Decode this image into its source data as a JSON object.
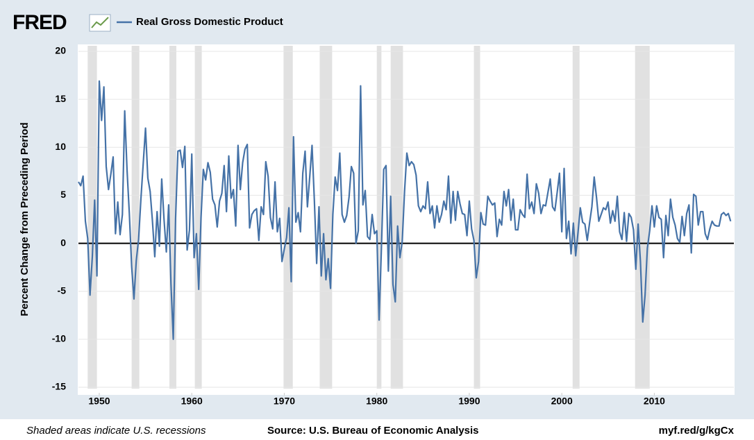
{
  "chart_data": {
    "type": "line",
    "logo": "FRED",
    "ylabel": "Percent Change from Preceding Period",
    "note": "Shaded areas indicate U.S. recessions",
    "source": "Source: U.S. Bureau of Economic Analysis",
    "link": "myf.red/g/kgCx",
    "xlim": [
      1947.75,
      2018.6
    ],
    "ylim": [
      -15,
      20
    ],
    "xticks": [
      1950,
      1960,
      1970,
      1980,
      1990,
      2000,
      2010
    ],
    "yticks": [
      -15,
      -10,
      -5,
      0,
      5,
      10,
      15,
      20
    ],
    "grid": true,
    "zero_line": true,
    "recession_color": "#e1e1e1",
    "recessions": [
      [
        1948.75,
        1949.75
      ],
      [
        1953.5,
        1954.33
      ],
      [
        1957.58,
        1958.33
      ],
      [
        1960.33,
        1961.08
      ],
      [
        1969.92,
        1970.92
      ],
      [
        1973.83,
        1975.17
      ],
      [
        1980.0,
        1980.5
      ],
      [
        1981.5,
        1982.83
      ],
      [
        1990.5,
        1991.17
      ],
      [
        2001.17,
        2001.92
      ],
      [
        2007.92,
        2009.5
      ]
    ],
    "x": [
      1947.75,
      1948,
      1948.25,
      1948.5,
      1948.75,
      1949,
      1949.25,
      1949.5,
      1949.75,
      1950,
      1950.25,
      1950.5,
      1950.75,
      1951,
      1951.25,
      1951.5,
      1951.75,
      1952,
      1952.25,
      1952.5,
      1952.75,
      1953,
      1953.25,
      1953.5,
      1953.75,
      1954,
      1954.25,
      1954.5,
      1954.75,
      1955,
      1955.25,
      1955.5,
      1955.75,
      1956,
      1956.25,
      1956.5,
      1956.75,
      1957,
      1957.25,
      1957.5,
      1957.75,
      1958,
      1958.25,
      1958.5,
      1958.75,
      1959,
      1959.25,
      1959.5,
      1959.75,
      1960,
      1960.25,
      1960.5,
      1960.75,
      1961,
      1961.25,
      1961.5,
      1961.75,
      1962,
      1962.25,
      1962.5,
      1962.75,
      1963,
      1963.25,
      1963.5,
      1963.75,
      1964,
      1964.25,
      1964.5,
      1964.75,
      1965,
      1965.25,
      1965.5,
      1965.75,
      1966,
      1966.25,
      1966.5,
      1966.75,
      1967,
      1967.25,
      1967.5,
      1967.75,
      1968,
      1968.25,
      1968.5,
      1968.75,
      1969,
      1969.25,
      1969.5,
      1969.75,
      1970,
      1970.25,
      1970.5,
      1970.75,
      1971,
      1971.25,
      1971.5,
      1971.75,
      1972,
      1972.25,
      1972.5,
      1972.75,
      1973,
      1973.25,
      1973.5,
      1973.75,
      1974,
      1974.25,
      1974.5,
      1974.75,
      1975,
      1975.25,
      1975.5,
      1975.75,
      1976,
      1976.25,
      1976.5,
      1976.75,
      1977,
      1977.25,
      1977.5,
      1977.75,
      1978,
      1978.25,
      1978.5,
      1978.75,
      1979,
      1979.25,
      1979.5,
      1979.75,
      1980,
      1980.25,
      1980.5,
      1980.75,
      1981,
      1981.25,
      1981.5,
      1981.75,
      1982,
      1982.25,
      1982.5,
      1982.75,
      1983,
      1983.25,
      1983.5,
      1983.75,
      1984,
      1984.25,
      1984.5,
      1984.75,
      1985,
      1985.25,
      1985.5,
      1985.75,
      1986,
      1986.25,
      1986.5,
      1986.75,
      1987,
      1987.25,
      1987.5,
      1987.75,
      1988,
      1988.25,
      1988.5,
      1988.75,
      1989,
      1989.25,
      1989.5,
      1989.75,
      1990,
      1990.25,
      1990.5,
      1990.75,
      1991,
      1991.25,
      1991.5,
      1991.75,
      1992,
      1992.25,
      1992.5,
      1992.75,
      1993,
      1993.25,
      1993.5,
      1993.75,
      1994,
      1994.25,
      1994.5,
      1994.75,
      1995,
      1995.25,
      1995.5,
      1995.75,
      1996,
      1996.25,
      1996.5,
      1996.75,
      1997,
      1997.25,
      1997.5,
      1997.75,
      1998,
      1998.25,
      1998.5,
      1998.75,
      1999,
      1999.25,
      1999.5,
      1999.75,
      2000,
      2000.25,
      2000.5,
      2000.75,
      2001,
      2001.25,
      2001.5,
      2001.75,
      2002,
      2002.25,
      2002.5,
      2002.75,
      2003,
      2003.25,
      2003.5,
      2003.75,
      2004,
      2004.25,
      2004.5,
      2004.75,
      2005,
      2005.25,
      2005.5,
      2005.75,
      2006,
      2006.25,
      2006.5,
      2006.75,
      2007,
      2007.25,
      2007.5,
      2007.75,
      2008,
      2008.25,
      2008.5,
      2008.75,
      2009,
      2009.25,
      2009.5,
      2009.75,
      2010,
      2010.25,
      2010.5,
      2010.75,
      2011,
      2011.25,
      2011.5,
      2011.75,
      2012,
      2012.25,
      2012.5,
      2012.75,
      2013,
      2013.25,
      2013.5,
      2013.75,
      2014,
      2014.25,
      2014.5,
      2014.75,
      2015,
      2015.25,
      2015.5,
      2015.75,
      2016,
      2016.25,
      2016.5,
      2016.75,
      2017,
      2017.25,
      2017.5,
      2017.75,
      2018,
      2018.25
    ],
    "series": [
      {
        "name": "Real Gross Domestic Product",
        "color": "#4572a7",
        "values": [
          6.4,
          6.0,
          7.0,
          2.3,
          0.5,
          -5.4,
          -1.4,
          4.5,
          -3.4,
          16.9,
          12.8,
          16.3,
          8.0,
          5.6,
          7.2,
          9.0,
          1.0,
          4.3,
          0.9,
          3.0,
          13.8,
          7.7,
          3.1,
          -2.4,
          -5.8,
          -1.8,
          0.4,
          4.6,
          8.3,
          12.0,
          6.8,
          5.4,
          2.3,
          -1.4,
          3.3,
          -0.3,
          6.7,
          2.5,
          -0.9,
          4.0,
          -4.2,
          -10.0,
          2.6,
          9.6,
          9.7,
          7.9,
          10.1,
          -0.7,
          1.4,
          9.3,
          -1.5,
          1.0,
          -4.8,
          2.7,
          7.7,
          6.6,
          8.4,
          7.4,
          4.6,
          4.0,
          1.7,
          4.4,
          5.2,
          8.1,
          3.3,
          9.1,
          4.7,
          5.6,
          1.8,
          10.2,
          5.6,
          8.4,
          9.8,
          10.3,
          1.6,
          3.0,
          3.4,
          3.6,
          0.3,
          3.8,
          3.0,
          8.5,
          7.0,
          2.7,
          1.5,
          6.4,
          1.2,
          2.6,
          -1.9,
          -0.6,
          0.6,
          3.7,
          -4.0,
          11.1,
          2.2,
          3.2,
          1.2,
          7.3,
          9.6,
          3.8,
          6.9,
          10.2,
          4.5,
          -2.1,
          3.8,
          -3.4,
          1.0,
          -3.8,
          -1.6,
          -4.7,
          3.0,
          6.9,
          5.5,
          9.4,
          3.0,
          2.2,
          2.9,
          4.8,
          8.0,
          7.3,
          0.0,
          1.3,
          16.4,
          4.0,
          5.5,
          0.7,
          0.4,
          3.0,
          1.0,
          1.3,
          -8.0,
          -0.5,
          7.7,
          8.1,
          -2.9,
          4.9,
          -4.3,
          -6.1,
          1.8,
          -1.5,
          0.2,
          5.4,
          9.4,
          8.1,
          8.5,
          8.2,
          7.1,
          3.9,
          3.3,
          3.9,
          3.6,
          6.4,
          3.1,
          3.9,
          1.6,
          3.9,
          2.2,
          3.0,
          4.4,
          3.5,
          7.0,
          2.1,
          5.4,
          2.4,
          5.4,
          4.1,
          3.1,
          3.0,
          0.8,
          4.4,
          1.5,
          0.3,
          -3.6,
          -1.9,
          3.2,
          2.0,
          1.9,
          4.9,
          4.4,
          4.0,
          4.2,
          0.7,
          2.5,
          1.9,
          5.4,
          3.9,
          5.6,
          2.4,
          4.6,
          1.4,
          1.4,
          3.5,
          3.0,
          2.7,
          7.2,
          3.6,
          4.3,
          3.1,
          6.2,
          5.2,
          3.1,
          4.0,
          3.9,
          5.3,
          6.7,
          3.8,
          3.4,
          5.3,
          7.3,
          1.2,
          7.8,
          0.5,
          2.3,
          -1.1,
          2.1,
          -1.3,
          1.1,
          3.7,
          2.2,
          2.0,
          0.3,
          2.1,
          3.8,
          6.9,
          4.8,
          2.3,
          3.0,
          3.7,
          3.5,
          4.3,
          2.1,
          3.4,
          2.3,
          4.9,
          1.2,
          0.4,
          3.2,
          0.2,
          3.1,
          2.7,
          1.4,
          -2.7,
          2.0,
          -1.9,
          -8.2,
          -5.4,
          -0.5,
          1.3,
          3.9,
          1.7,
          3.9,
          2.7,
          2.5,
          -1.5,
          2.9,
          0.8,
          4.6,
          2.7,
          1.9,
          0.5,
          0.1,
          2.8,
          0.8,
          3.1,
          4.0,
          -1.0,
          5.1,
          4.9,
          1.9,
          3.3,
          3.3,
          1.0,
          0.4,
          1.5,
          2.3,
          1.9,
          1.8,
          1.8,
          3.0,
          3.2,
          2.9,
          3.1,
          2.3
        ]
      }
    ]
  }
}
